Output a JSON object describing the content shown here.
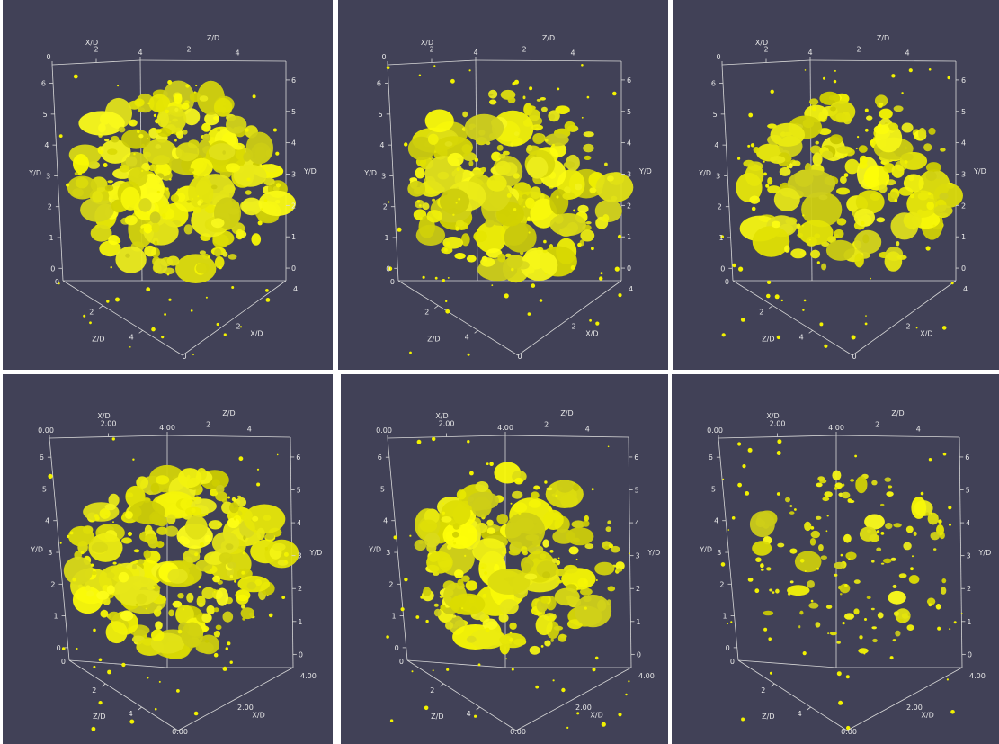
{
  "colors": {
    "background": "#414157",
    "surface": "#f2f200",
    "axes": "#d8d8d8",
    "text": "#e8e8e8"
  },
  "axis_titles": {
    "x": "X/D",
    "y": "Y/D",
    "z": "Z/D"
  },
  "panels": [
    {
      "xticks_top": [
        "0",
        "2",
        "4"
      ],
      "zticks_top": [
        "2",
        "4"
      ],
      "yticks_left": [
        "6",
        "5",
        "4",
        "3",
        "2",
        "1",
        "0"
      ],
      "yticks_right": [
        "6",
        "5",
        "4",
        "3",
        "2",
        "1",
        "0"
      ],
      "zticks_bottom": [
        "2",
        "4"
      ],
      "xticks_bottom": [
        "0",
        "2",
        "4"
      ],
      "origin_label": "0"
    },
    {
      "xticks_top": [
        "0",
        "2",
        "4"
      ],
      "zticks_top": [
        "2",
        "4"
      ],
      "yticks_left": [
        "6",
        "5",
        "4",
        "3",
        "2",
        "1",
        "0"
      ],
      "yticks_right": [
        "6",
        "5",
        "4",
        "3",
        "2",
        "1",
        "0"
      ],
      "zticks_bottom": [
        "2",
        "4"
      ],
      "xticks_bottom": [
        "0",
        "2",
        "4"
      ],
      "origin_label": "0"
    },
    {
      "xticks_top": [
        "0",
        "2",
        "4"
      ],
      "zticks_top": [
        "2",
        "4"
      ],
      "yticks_left": [
        "6",
        "5",
        "4",
        "3",
        "2",
        "1",
        "0"
      ],
      "yticks_right": [
        "6",
        "5",
        "4",
        "3",
        "2",
        "1",
        "0"
      ],
      "zticks_bottom": [
        "2",
        "4"
      ],
      "xticks_bottom": [
        "0",
        "2",
        "4"
      ],
      "origin_label": "0"
    },
    {
      "xticks_top": [
        "0.00",
        "2.00",
        "4.00"
      ],
      "zticks_top": [
        "2",
        "4"
      ],
      "yticks_left": [
        "6",
        "5",
        "4",
        "3",
        "2",
        "1",
        "0"
      ],
      "yticks_right": [
        "6",
        "5",
        "4",
        "3",
        "2",
        "1",
        "0"
      ],
      "zticks_bottom": [
        "2",
        "4"
      ],
      "xticks_bottom": [
        "0.00",
        "2.00",
        "4.00"
      ],
      "origin_label": "0"
    },
    {
      "xticks_top": [
        "0.00",
        "2.00",
        "4.00"
      ],
      "zticks_top": [
        "2",
        "4"
      ],
      "yticks_left": [
        "6",
        "5",
        "4",
        "3",
        "2",
        "1",
        "0"
      ],
      "yticks_right": [
        "6",
        "5",
        "4",
        "3",
        "2",
        "1",
        "0"
      ],
      "zticks_bottom": [
        "2",
        "4"
      ],
      "xticks_bottom": [
        "0.00",
        "2.00",
        "4.00"
      ],
      "origin_label": "0"
    },
    {
      "xticks_top": [
        "0.00",
        "2.00",
        "4.00"
      ],
      "zticks_top": [
        "2",
        "4"
      ],
      "yticks_left": [
        "6",
        "5",
        "4",
        "3",
        "2",
        "1",
        "0"
      ],
      "yticks_right": [
        "6",
        "5",
        "4",
        "3",
        "2",
        "1",
        "0"
      ],
      "zticks_bottom": [
        "2",
        "4"
      ],
      "xticks_bottom": [
        "0.00",
        "2.00",
        "4.00"
      ],
      "origin_label": "0"
    }
  ]
}
